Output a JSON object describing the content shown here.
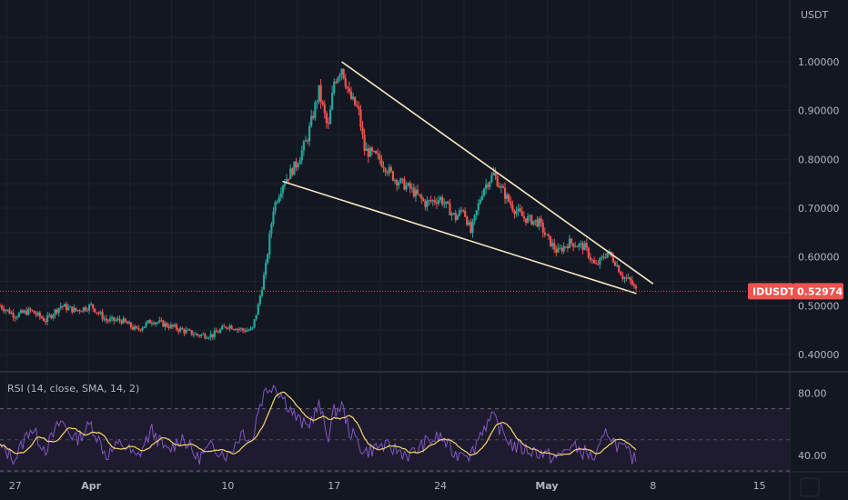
{
  "chart_data": [
    {
      "type": "candlestick",
      "symbol": "IDUSDT",
      "currency_label": "USDT",
      "last_price": 0.52974,
      "last_price_label": "0.52974",
      "ylim": [
        0.36,
        1.08
      ],
      "y_ticks": [
        {
          "value": 1.0,
          "label": "1.00000"
        },
        {
          "value": 0.9,
          "label": "0.90000"
        },
        {
          "value": 0.8,
          "label": "0.80000"
        },
        {
          "value": 0.7,
          "label": "0.70000"
        },
        {
          "value": 0.6,
          "label": "0.60000"
        },
        {
          "value": 0.5,
          "label": "0.50000"
        },
        {
          "value": 0.4,
          "label": "0.40000"
        }
      ],
      "x_range_days": [
        -1,
        51
      ],
      "x_ticks": [
        {
          "day": 0,
          "label": "27"
        },
        {
          "day": 5,
          "label": "Apr"
        },
        {
          "day": 14,
          "label": "10"
        },
        {
          "day": 21,
          "label": "17"
        },
        {
          "day": 28,
          "label": "24"
        },
        {
          "day": 35,
          "label": "May"
        },
        {
          "day": 42,
          "label": "8"
        },
        {
          "day": 49,
          "label": "15"
        }
      ],
      "price_path": [
        [
          -1,
          0.5
        ],
        [
          0,
          0.48
        ],
        [
          1,
          0.49
        ],
        [
          2,
          0.47
        ],
        [
          3,
          0.5
        ],
        [
          4,
          0.49
        ],
        [
          5,
          0.5
        ],
        [
          6,
          0.47
        ],
        [
          7,
          0.47
        ],
        [
          8,
          0.45
        ],
        [
          9,
          0.47
        ],
        [
          10,
          0.46
        ],
        [
          11,
          0.45
        ],
        [
          12,
          0.44
        ],
        [
          13,
          0.44
        ],
        [
          14,
          0.46
        ],
        [
          15,
          0.45
        ],
        [
          15.6,
          0.45
        ],
        [
          16,
          0.5
        ],
        [
          16.5,
          0.58
        ],
        [
          17,
          0.7
        ],
        [
          17.6,
          0.75
        ],
        [
          18.5,
          0.79
        ],
        [
          19.2,
          0.84
        ],
        [
          20,
          0.94
        ],
        [
          20.6,
          0.86
        ],
        [
          21,
          0.96
        ],
        [
          21.5,
          0.99
        ],
        [
          22,
          0.93
        ],
        [
          22.6,
          0.9
        ],
        [
          23,
          0.82
        ],
        [
          24,
          0.8
        ],
        [
          25,
          0.76
        ],
        [
          26,
          0.74
        ],
        [
          27,
          0.71
        ],
        [
          28,
          0.72
        ],
        [
          29,
          0.68
        ],
        [
          29.5,
          0.7
        ],
        [
          30,
          0.65
        ],
        [
          30.8,
          0.74
        ],
        [
          31.5,
          0.77
        ],
        [
          32,
          0.74
        ],
        [
          32.8,
          0.7
        ],
        [
          33.5,
          0.68
        ],
        [
          34.5,
          0.67
        ],
        [
          35,
          0.64
        ],
        [
          35.7,
          0.61
        ],
        [
          36.5,
          0.63
        ],
        [
          37.5,
          0.62
        ],
        [
          38.2,
          0.58
        ],
        [
          39,
          0.61
        ],
        [
          39.5,
          0.59
        ],
        [
          40,
          0.56
        ],
        [
          40.5,
          0.55
        ],
        [
          40.9,
          0.53
        ]
      ],
      "annotations": {
        "upper_trendline": {
          "from": [
            21.5,
            1.0
          ],
          "to": [
            42,
            0.545
          ]
        },
        "lower_trendline": {
          "from": [
            17.6,
            0.755
          ],
          "to": [
            40.9,
            0.525
          ]
        }
      },
      "colors": {
        "up": "#26a69a",
        "down": "#ef5350",
        "trendline": "#f5e7c0",
        "background": "#131722"
      }
    },
    {
      "type": "line",
      "indicator": "RSI",
      "label": "RSI (14, close, SMA, 14, 2)",
      "ylim": [
        30,
        92
      ],
      "y_ticks": [
        {
          "value": 80,
          "label": "80.00"
        },
        {
          "value": 40,
          "label": "40.00"
        }
      ],
      "bands": {
        "upper": 70,
        "middle": 50,
        "lower": 30
      },
      "rsi_path": [
        [
          -1,
          45
        ],
        [
          0,
          38
        ],
        [
          1,
          58
        ],
        [
          2,
          44
        ],
        [
          3,
          62
        ],
        [
          4,
          50
        ],
        [
          5,
          60
        ],
        [
          6,
          40
        ],
        [
          7,
          48
        ],
        [
          8,
          38
        ],
        [
          9,
          56
        ],
        [
          10,
          42
        ],
        [
          11,
          52
        ],
        [
          12,
          38
        ],
        [
          13,
          46
        ],
        [
          14,
          40
        ],
        [
          15,
          56
        ],
        [
          15.6,
          48
        ],
        [
          16,
          70
        ],
        [
          16.5,
          82
        ],
        [
          17,
          86
        ],
        [
          17.6,
          78
        ],
        [
          18.5,
          64
        ],
        [
          19.2,
          58
        ],
        [
          20,
          72
        ],
        [
          20.6,
          52
        ],
        [
          21,
          68
        ],
        [
          21.5,
          72
        ],
        [
          22,
          56
        ],
        [
          22.6,
          48
        ],
        [
          23,
          42
        ],
        [
          24,
          46
        ],
        [
          25,
          44
        ],
        [
          26,
          40
        ],
        [
          27,
          48
        ],
        [
          28,
          52
        ],
        [
          29,
          40
        ],
        [
          29.5,
          44
        ],
        [
          30,
          40
        ],
        [
          30.8,
          58
        ],
        [
          31.5,
          64
        ],
        [
          32,
          56
        ],
        [
          32.8,
          46
        ],
        [
          33.5,
          44
        ],
        [
          34.5,
          42
        ],
        [
          35,
          40
        ],
        [
          35.7,
          38
        ],
        [
          36.5,
          46
        ],
        [
          37.5,
          42
        ],
        [
          38.2,
          38
        ],
        [
          39,
          56
        ],
        [
          39.5,
          48
        ],
        [
          40,
          44
        ],
        [
          40.5,
          40
        ],
        [
          40.9,
          36
        ]
      ],
      "colors": {
        "rsi": "#7e57c2",
        "ma": "#f5d66b",
        "band_fill": "#1f1b2e"
      }
    }
  ]
}
